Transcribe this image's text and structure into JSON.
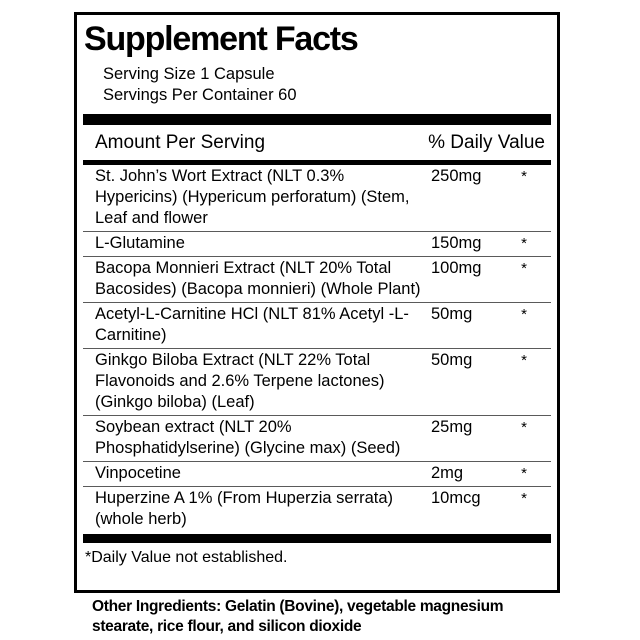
{
  "panel": {
    "title": "Supplement Facts",
    "serving_size": "Serving Size 1 Capsule",
    "servings_per_container": "Servings Per Container 60",
    "columns": {
      "amount_header": "Amount Per Serving",
      "dv_header": "% Daily Value"
    },
    "rows": [
      {
        "name": "St. John’s Wort Extract (NLT 0.3% Hypericins) (Hypericum perforatum) (Stem, Leaf and flower",
        "amount": "250mg",
        "daily_value": "*"
      },
      {
        "name": "L-Glutamine",
        "amount": "150mg",
        "daily_value": "*"
      },
      {
        "name": "Bacopa Monnieri Extract (NLT 20% Total Bacosides) (Bacopa monnieri) (Whole Plant)",
        "amount": "100mg",
        "daily_value": "*"
      },
      {
        "name": "Acetyl-L-Carnitine HCl (NLT 81% Acetyl -L-Carnitine)",
        "amount": "50mg",
        "daily_value": "*"
      },
      {
        "name": "Ginkgo Biloba Extract (NLT 22% Total Flavonoids and 2.6% Terpene lactones) (Ginkgo biloba) (Leaf)",
        "amount": "50mg",
        "daily_value": "*"
      },
      {
        "name": "Soybean extract (NLT 20% Phosphatidylserine) (Glycine max) (Seed)",
        "amount": "25mg",
        "daily_value": "*"
      },
      {
        "name": "Vinpocetine",
        "amount": "2mg",
        "daily_value": "*"
      },
      {
        "name": "Huperzine A 1% (From Huperzia serrata) (whole herb)",
        "amount": "10mcg",
        "daily_value": "*"
      }
    ],
    "footnote": "*Daily Value not established.",
    "other_ingredients": "Other Ingredients: Gelatin (Bovine), vegetable magnesium stearate, rice flour, and silicon dioxide"
  },
  "colors": {
    "background": "#ffffff",
    "text": "#000000",
    "bars": "#000000",
    "border": "#000000",
    "row_divider": "#5a5a5a"
  }
}
